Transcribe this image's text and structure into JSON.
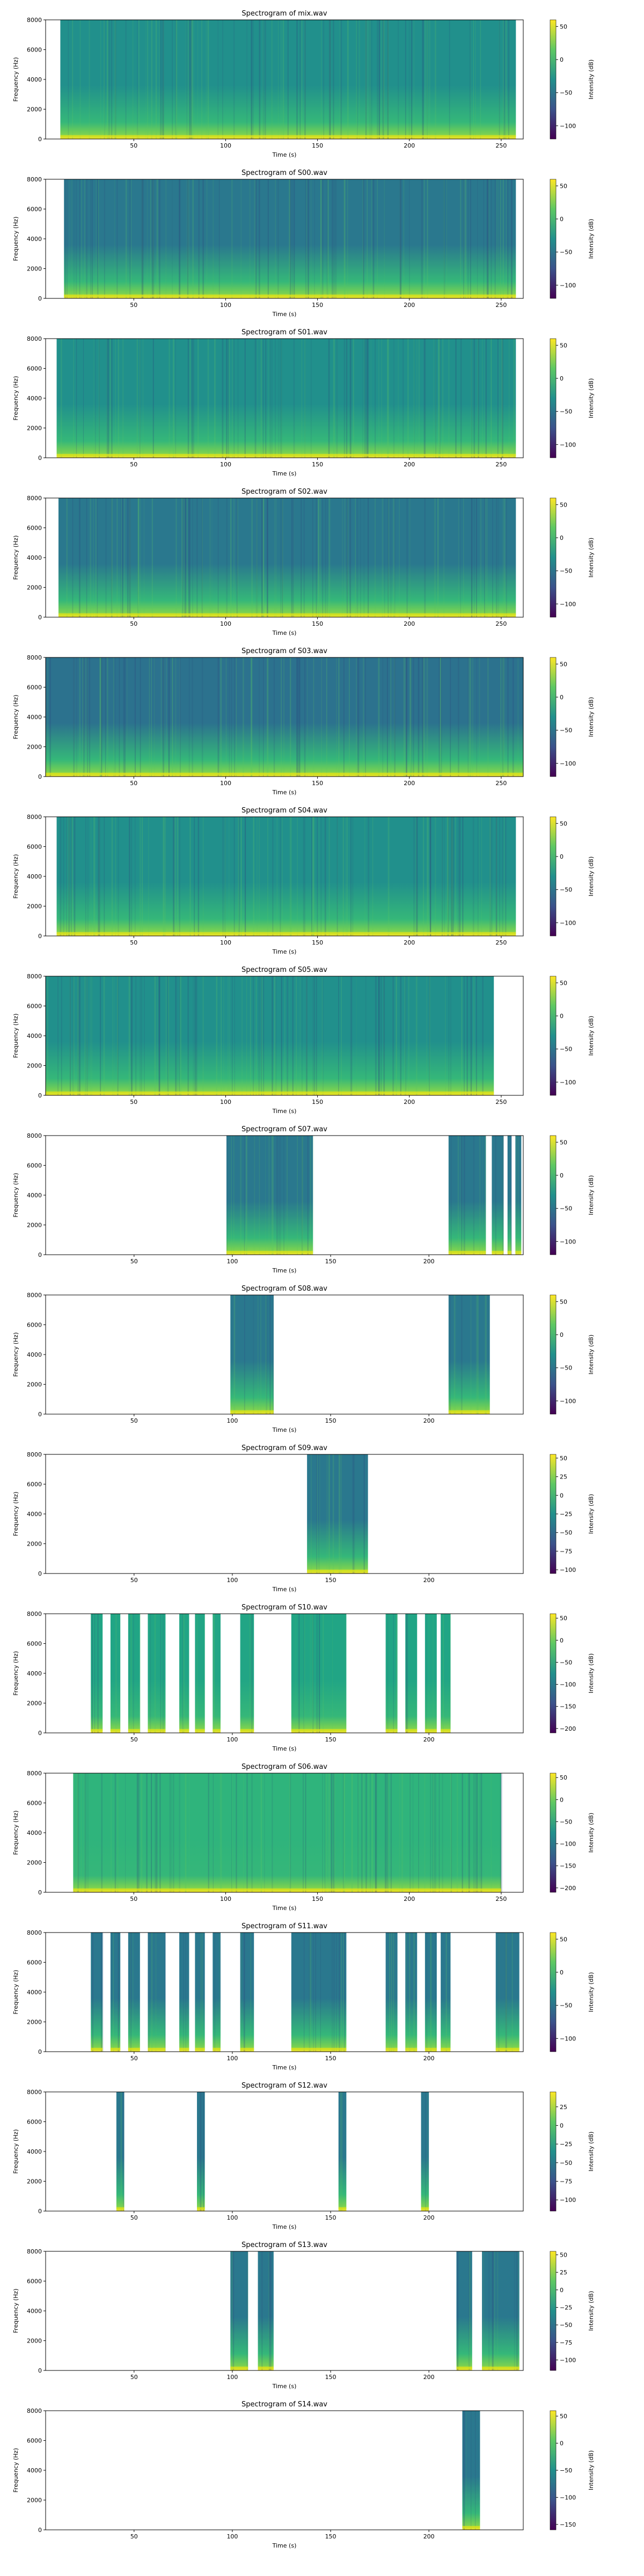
{
  "figure": {
    "xlabel": "Time (s)",
    "ylabel": "Frequency (Hz)",
    "colorbar_label": "Intensity (dB)",
    "colormap": [
      "#440154",
      "#3b528b",
      "#21908c",
      "#5dc863",
      "#fde725"
    ]
  },
  "chart_data": [
    {
      "type": "heatmap",
      "title": "Spectrogram of mix.wav",
      "xlabel": "Time (s)",
      "ylabel": "Frequency (Hz)",
      "xlim": [
        2,
        262
      ],
      "ylim": [
        0,
        8000
      ],
      "xticks": [
        50,
        100,
        150,
        200,
        250
      ],
      "yticks": [
        0,
        2000,
        4000,
        6000,
        8000
      ],
      "colorbar": {
        "label": "Intensity (dB)",
        "range": [
          -120,
          60
        ],
        "ticks": [
          50,
          0,
          -50,
          -100
        ]
      },
      "active_segments": [
        [
          10,
          258
        ]
      ],
      "dominant_color": "#21908c"
    },
    {
      "type": "heatmap",
      "title": "Spectrogram of S00.wav",
      "xlabel": "Time (s)",
      "ylabel": "Frequency (Hz)",
      "xlim": [
        2,
        262
      ],
      "ylim": [
        0,
        8000
      ],
      "xticks": [
        50,
        100,
        150,
        200,
        250
      ],
      "yticks": [
        0,
        2000,
        4000,
        6000,
        8000
      ],
      "colorbar": {
        "label": "Intensity (dB)",
        "range": [
          -120,
          60
        ],
        "ticks": [
          50,
          0,
          -50,
          -100
        ]
      },
      "active_segments": [
        [
          12,
          258
        ]
      ],
      "dominant_color": "#2a788e"
    },
    {
      "type": "heatmap",
      "title": "Spectrogram of S01.wav",
      "xlabel": "Time (s)",
      "ylabel": "Frequency (Hz)",
      "xlim": [
        2,
        262
      ],
      "ylim": [
        0,
        8000
      ],
      "xticks": [
        50,
        100,
        150,
        200,
        250
      ],
      "yticks": [
        0,
        2000,
        4000,
        6000,
        8000
      ],
      "colorbar": {
        "label": "Intensity (dB)",
        "range": [
          -120,
          60
        ],
        "ticks": [
          50,
          0,
          -50,
          -100
        ]
      },
      "active_segments": [
        [
          8,
          258
        ]
      ],
      "dominant_color": "#21908c"
    },
    {
      "type": "heatmap",
      "title": "Spectrogram of S02.wav",
      "xlabel": "Time (s)",
      "ylabel": "Frequency (Hz)",
      "xlim": [
        2,
        262
      ],
      "ylim": [
        0,
        8000
      ],
      "xticks": [
        50,
        100,
        150,
        200,
        250
      ],
      "yticks": [
        0,
        2000,
        4000,
        6000,
        8000
      ],
      "colorbar": {
        "label": "Intensity (dB)",
        "range": [
          -120,
          60
        ],
        "ticks": [
          50,
          0,
          -50,
          -100
        ]
      },
      "active_segments": [
        [
          9,
          258
        ]
      ],
      "dominant_color": "#2a788e"
    },
    {
      "type": "heatmap",
      "title": "Spectrogram of S03.wav",
      "xlabel": "Time (s)",
      "ylabel": "Frequency (Hz)",
      "xlim": [
        2,
        262
      ],
      "ylim": [
        0,
        8000
      ],
      "xticks": [
        50,
        100,
        150,
        200,
        250
      ],
      "yticks": [
        0,
        2000,
        4000,
        6000,
        8000
      ],
      "colorbar": {
        "label": "Intensity (dB)",
        "range": [
          -120,
          60
        ],
        "ticks": [
          50,
          0,
          -50,
          -100
        ]
      },
      "active_segments": [
        [
          2,
          262
        ]
      ],
      "dominant_color": "#2c728e"
    },
    {
      "type": "heatmap",
      "title": "Spectrogram of S04.wav",
      "xlabel": "Time (s)",
      "ylabel": "Frequency (Hz)",
      "xlim": [
        2,
        262
      ],
      "ylim": [
        0,
        8000
      ],
      "xticks": [
        50,
        100,
        150,
        200,
        250
      ],
      "yticks": [
        0,
        2000,
        4000,
        6000,
        8000
      ],
      "colorbar": {
        "label": "Intensity (dB)",
        "range": [
          -120,
          60
        ],
        "ticks": [
          50,
          0,
          -50,
          -100
        ]
      },
      "active_segments": [
        [
          8,
          258
        ]
      ],
      "dominant_color": "#21908c"
    },
    {
      "type": "heatmap",
      "title": "Spectrogram of S05.wav",
      "xlabel": "Time (s)",
      "ylabel": "Frequency (Hz)",
      "xlim": [
        2,
        262
      ],
      "ylim": [
        0,
        8000
      ],
      "xticks": [
        50,
        100,
        150,
        200,
        250
      ],
      "yticks": [
        0,
        2000,
        4000,
        6000,
        8000
      ],
      "colorbar": {
        "label": "Intensity (dB)",
        "range": [
          -120,
          60
        ],
        "ticks": [
          50,
          0,
          -50,
          -100
        ]
      },
      "active_segments": [
        [
          2,
          246
        ]
      ],
      "dominant_color": "#21908c"
    },
    {
      "type": "heatmap",
      "title": "Spectrogram of S07.wav",
      "xlabel": "Time (s)",
      "ylabel": "Frequency (Hz)",
      "xlim": [
        5,
        248
      ],
      "ylim": [
        0,
        8000
      ],
      "xticks": [
        50,
        100,
        150,
        200
      ],
      "yticks": [
        0,
        2000,
        4000,
        6000,
        8000
      ],
      "colorbar": {
        "label": "Intensity (dB)",
        "range": [
          -120,
          60
        ],
        "ticks": [
          50,
          0,
          -50,
          -100
        ]
      },
      "active_segments": [
        [
          97,
          141
        ],
        [
          210,
          229
        ],
        [
          232,
          238
        ],
        [
          240,
          242
        ],
        [
          244,
          247
        ]
      ],
      "dominant_color": "#2a788e"
    },
    {
      "type": "heatmap",
      "title": "Spectrogram of S08.wav",
      "xlabel": "Time (s)",
      "ylabel": "Frequency (Hz)",
      "xlim": [
        5,
        248
      ],
      "ylim": [
        0,
        8000
      ],
      "xticks": [
        50,
        100,
        150,
        200
      ],
      "yticks": [
        0,
        2000,
        4000,
        6000,
        8000
      ],
      "colorbar": {
        "label": "Intensity (dB)",
        "range": [
          -120,
          60
        ],
        "ticks": [
          50,
          0,
          -50,
          -100
        ]
      },
      "active_segments": [
        [
          99,
          121
        ],
        [
          210,
          231
        ]
      ],
      "dominant_color": "#2a788e"
    },
    {
      "type": "heatmap",
      "title": "Spectrogram of S09.wav",
      "xlabel": "Time (s)",
      "ylabel": "Frequency (Hz)",
      "xlim": [
        5,
        248
      ],
      "ylim": [
        0,
        8000
      ],
      "xticks": [
        50,
        100,
        150,
        200
      ],
      "yticks": [
        0,
        2000,
        4000,
        6000,
        8000
      ],
      "colorbar": {
        "label": "Intensity (dB)",
        "range": [
          -105,
          55
        ],
        "ticks": [
          50,
          25,
          0,
          -25,
          -50,
          -75,
          -100
        ]
      },
      "active_segments": [
        [
          138,
          169
        ]
      ],
      "dominant_color": "#2a788e"
    },
    {
      "type": "heatmap",
      "title": "Spectrogram of S10.wav",
      "xlabel": "Time (s)",
      "ylabel": "Frequency (Hz)",
      "xlim": [
        5,
        248
      ],
      "ylim": [
        0,
        8000
      ],
      "xticks": [
        50,
        100,
        150,
        200
      ],
      "yticks": [
        0,
        2000,
        4000,
        6000,
        8000
      ],
      "colorbar": {
        "label": "Intensity (dB)",
        "range": [
          -210,
          60
        ],
        "ticks": [
          50,
          0,
          -50,
          -100,
          -150,
          -200
        ]
      },
      "active_segments": [
        [
          28,
          34
        ],
        [
          38,
          43
        ],
        [
          47,
          53
        ],
        [
          57,
          66
        ],
        [
          73,
          78
        ],
        [
          81,
          86
        ],
        [
          90,
          94
        ],
        [
          104,
          111
        ],
        [
          130,
          158
        ],
        [
          178,
          184
        ],
        [
          188,
          194
        ],
        [
          198,
          204
        ],
        [
          206,
          211
        ]
      ],
      "dominant_color": "#21a585"
    },
    {
      "type": "heatmap",
      "title": "Spectrogram of S06.wav",
      "xlabel": "Time (s)",
      "ylabel": "Frequency (Hz)",
      "xlim": [
        2,
        262
      ],
      "ylim": [
        0,
        8000
      ],
      "xticks": [
        50,
        100,
        150,
        200,
        250
      ],
      "yticks": [
        0,
        2000,
        4000,
        6000,
        8000
      ],
      "colorbar": {
        "label": "Intensity (dB)",
        "range": [
          -210,
          60
        ],
        "ticks": [
          50,
          0,
          -50,
          -100,
          -150,
          -200
        ]
      },
      "active_segments": [
        [
          17,
          250
        ]
      ],
      "dominant_color": "#2fb47c"
    },
    {
      "type": "heatmap",
      "title": "Spectrogram of S11.wav",
      "xlabel": "Time (s)",
      "ylabel": "Frequency (Hz)",
      "xlim": [
        5,
        248
      ],
      "ylim": [
        0,
        8000
      ],
      "xticks": [
        50,
        100,
        150,
        200
      ],
      "yticks": [
        0,
        2000,
        4000,
        6000,
        8000
      ],
      "colorbar": {
        "label": "Intensity (dB)",
        "range": [
          -120,
          60
        ],
        "ticks": [
          50,
          0,
          -50,
          -100
        ]
      },
      "active_segments": [
        [
          28,
          34
        ],
        [
          38,
          43
        ],
        [
          47,
          53
        ],
        [
          57,
          66
        ],
        [
          73,
          78
        ],
        [
          81,
          86
        ],
        [
          90,
          94
        ],
        [
          104,
          111
        ],
        [
          130,
          158
        ],
        [
          178,
          184
        ],
        [
          188,
          194
        ],
        [
          198,
          204
        ],
        [
          206,
          211
        ],
        [
          234,
          246
        ]
      ],
      "dominant_color": "#2a788e"
    },
    {
      "type": "heatmap",
      "title": "Spectrogram of S12.wav",
      "xlabel": "Time (s)",
      "ylabel": "Frequency (Hz)",
      "xlim": [
        5,
        248
      ],
      "ylim": [
        0,
        8000
      ],
      "xticks": [
        50,
        100,
        150,
        200
      ],
      "yticks": [
        0,
        2000,
        4000,
        6000,
        8000
      ],
      "colorbar": {
        "label": "Intensity (dB)",
        "range": [
          -115,
          45
        ],
        "ticks": [
          25,
          0,
          -25,
          -50,
          -75,
          -100
        ]
      },
      "active_segments": [
        [
          41,
          45
        ],
        [
          82,
          86
        ],
        [
          154,
          158
        ],
        [
          196,
          200
        ]
      ],
      "dominant_color": "#2a788e"
    },
    {
      "type": "heatmap",
      "title": "Spectrogram of S13.wav",
      "xlabel": "Time (s)",
      "ylabel": "Frequency (Hz)",
      "xlim": [
        5,
        248
      ],
      "ylim": [
        0,
        8000
      ],
      "xticks": [
        50,
        100,
        150,
        200
      ],
      "yticks": [
        0,
        2000,
        4000,
        6000,
        8000
      ],
      "colorbar": {
        "label": "Intensity (dB)",
        "range": [
          -115,
          55
        ],
        "ticks": [
          50,
          25,
          0,
          -25,
          -50,
          -75,
          -100
        ]
      },
      "active_segments": [
        [
          99,
          108
        ],
        [
          113,
          121
        ],
        [
          214,
          222
        ],
        [
          227,
          246
        ]
      ],
      "dominant_color": "#2a788e"
    },
    {
      "type": "heatmap",
      "title": "Spectrogram of S14.wav",
      "xlabel": "Time (s)",
      "ylabel": "Frequency (Hz)",
      "xlim": [
        5,
        248
      ],
      "ylim": [
        0,
        8000
      ],
      "xticks": [
        50,
        100,
        150,
        200
      ],
      "yticks": [
        0,
        2000,
        4000,
        6000,
        8000
      ],
      "colorbar": {
        "label": "Intensity (dB)",
        "range": [
          -160,
          60
        ],
        "ticks": [
          50,
          0,
          -50,
          -100,
          -150
        ]
      },
      "active_segments": [
        [
          217,
          226
        ]
      ],
      "dominant_color": "#2a788e"
    }
  ]
}
